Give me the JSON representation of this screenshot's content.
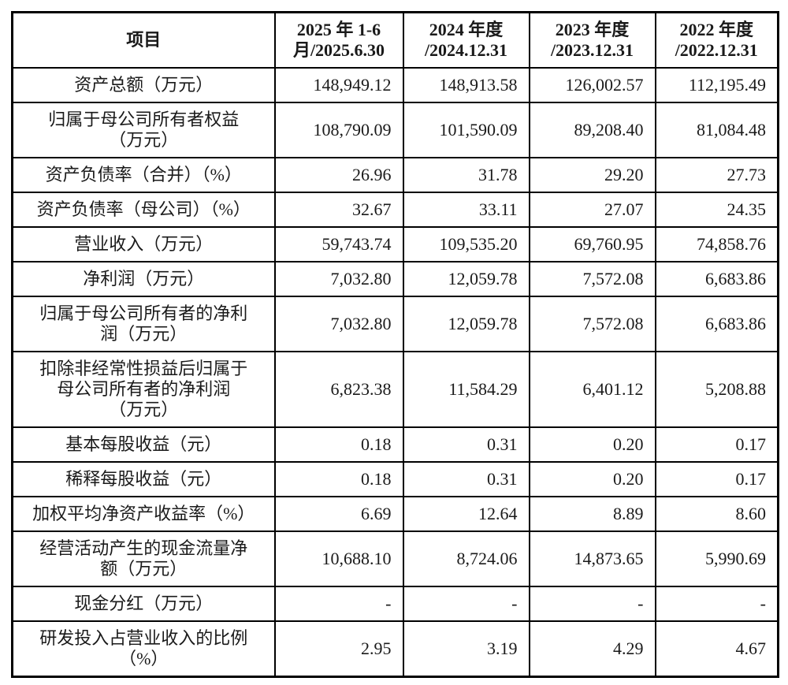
{
  "table": {
    "header": {
      "item": "项目",
      "periods": [
        [
          "2025 年 1-6",
          "月/2025.6.30"
        ],
        [
          "2024 年度",
          "/2024.12.31"
        ],
        [
          "2023 年度",
          "/2023.12.31"
        ],
        [
          "2022 年度",
          "/2022.12.31"
        ]
      ]
    },
    "rows": [
      {
        "label": "资产总额（万元）",
        "values": [
          "148,949.12",
          "148,913.58",
          "126,002.57",
          "112,195.49"
        ]
      },
      {
        "label": [
          "归属于母公司所有者权益",
          "（万元）"
        ],
        "values": [
          "108,790.09",
          "101,590.09",
          "89,208.40",
          "81,084.48"
        ]
      },
      {
        "label": "资产负债率（合并）（%）",
        "values": [
          "26.96",
          "31.78",
          "29.20",
          "27.73"
        ]
      },
      {
        "label": "资产负债率（母公司）（%）",
        "values": [
          "32.67",
          "33.11",
          "27.07",
          "24.35"
        ]
      },
      {
        "label": "营业收入（万元）",
        "values": [
          "59,743.74",
          "109,535.20",
          "69,760.95",
          "74,858.76"
        ]
      },
      {
        "label": "净利润（万元）",
        "values": [
          "7,032.80",
          "12,059.78",
          "7,572.08",
          "6,683.86"
        ]
      },
      {
        "label": [
          "归属于母公司所有者的净利",
          "润（万元）"
        ],
        "values": [
          "7,032.80",
          "12,059.78",
          "7,572.08",
          "6,683.86"
        ]
      },
      {
        "label": [
          "扣除非经常性损益后归属于",
          "母公司所有者的净利润",
          "（万元）"
        ],
        "values": [
          "6,823.38",
          "11,584.29",
          "6,401.12",
          "5,208.88"
        ]
      },
      {
        "label": "基本每股收益（元）",
        "values": [
          "0.18",
          "0.31",
          "0.20",
          "0.17"
        ]
      },
      {
        "label": "稀释每股收益（元）",
        "values": [
          "0.18",
          "0.31",
          "0.20",
          "0.17"
        ]
      },
      {
        "label": "加权平均净资产收益率（%）",
        "values": [
          "6.69",
          "12.64",
          "8.89",
          "8.60"
        ]
      },
      {
        "label": [
          "经营活动产生的现金流量净",
          "额（万元）"
        ],
        "values": [
          "10,688.10",
          "8,724.06",
          "14,873.65",
          "5,990.69"
        ]
      },
      {
        "label": "现金分红（万元）",
        "values": [
          "-",
          "-",
          "-",
          "-"
        ]
      },
      {
        "label": [
          "研发投入占营业收入的比例",
          "（%）"
        ],
        "values": [
          "2.95",
          "3.19",
          "4.29",
          "4.67"
        ]
      }
    ]
  }
}
